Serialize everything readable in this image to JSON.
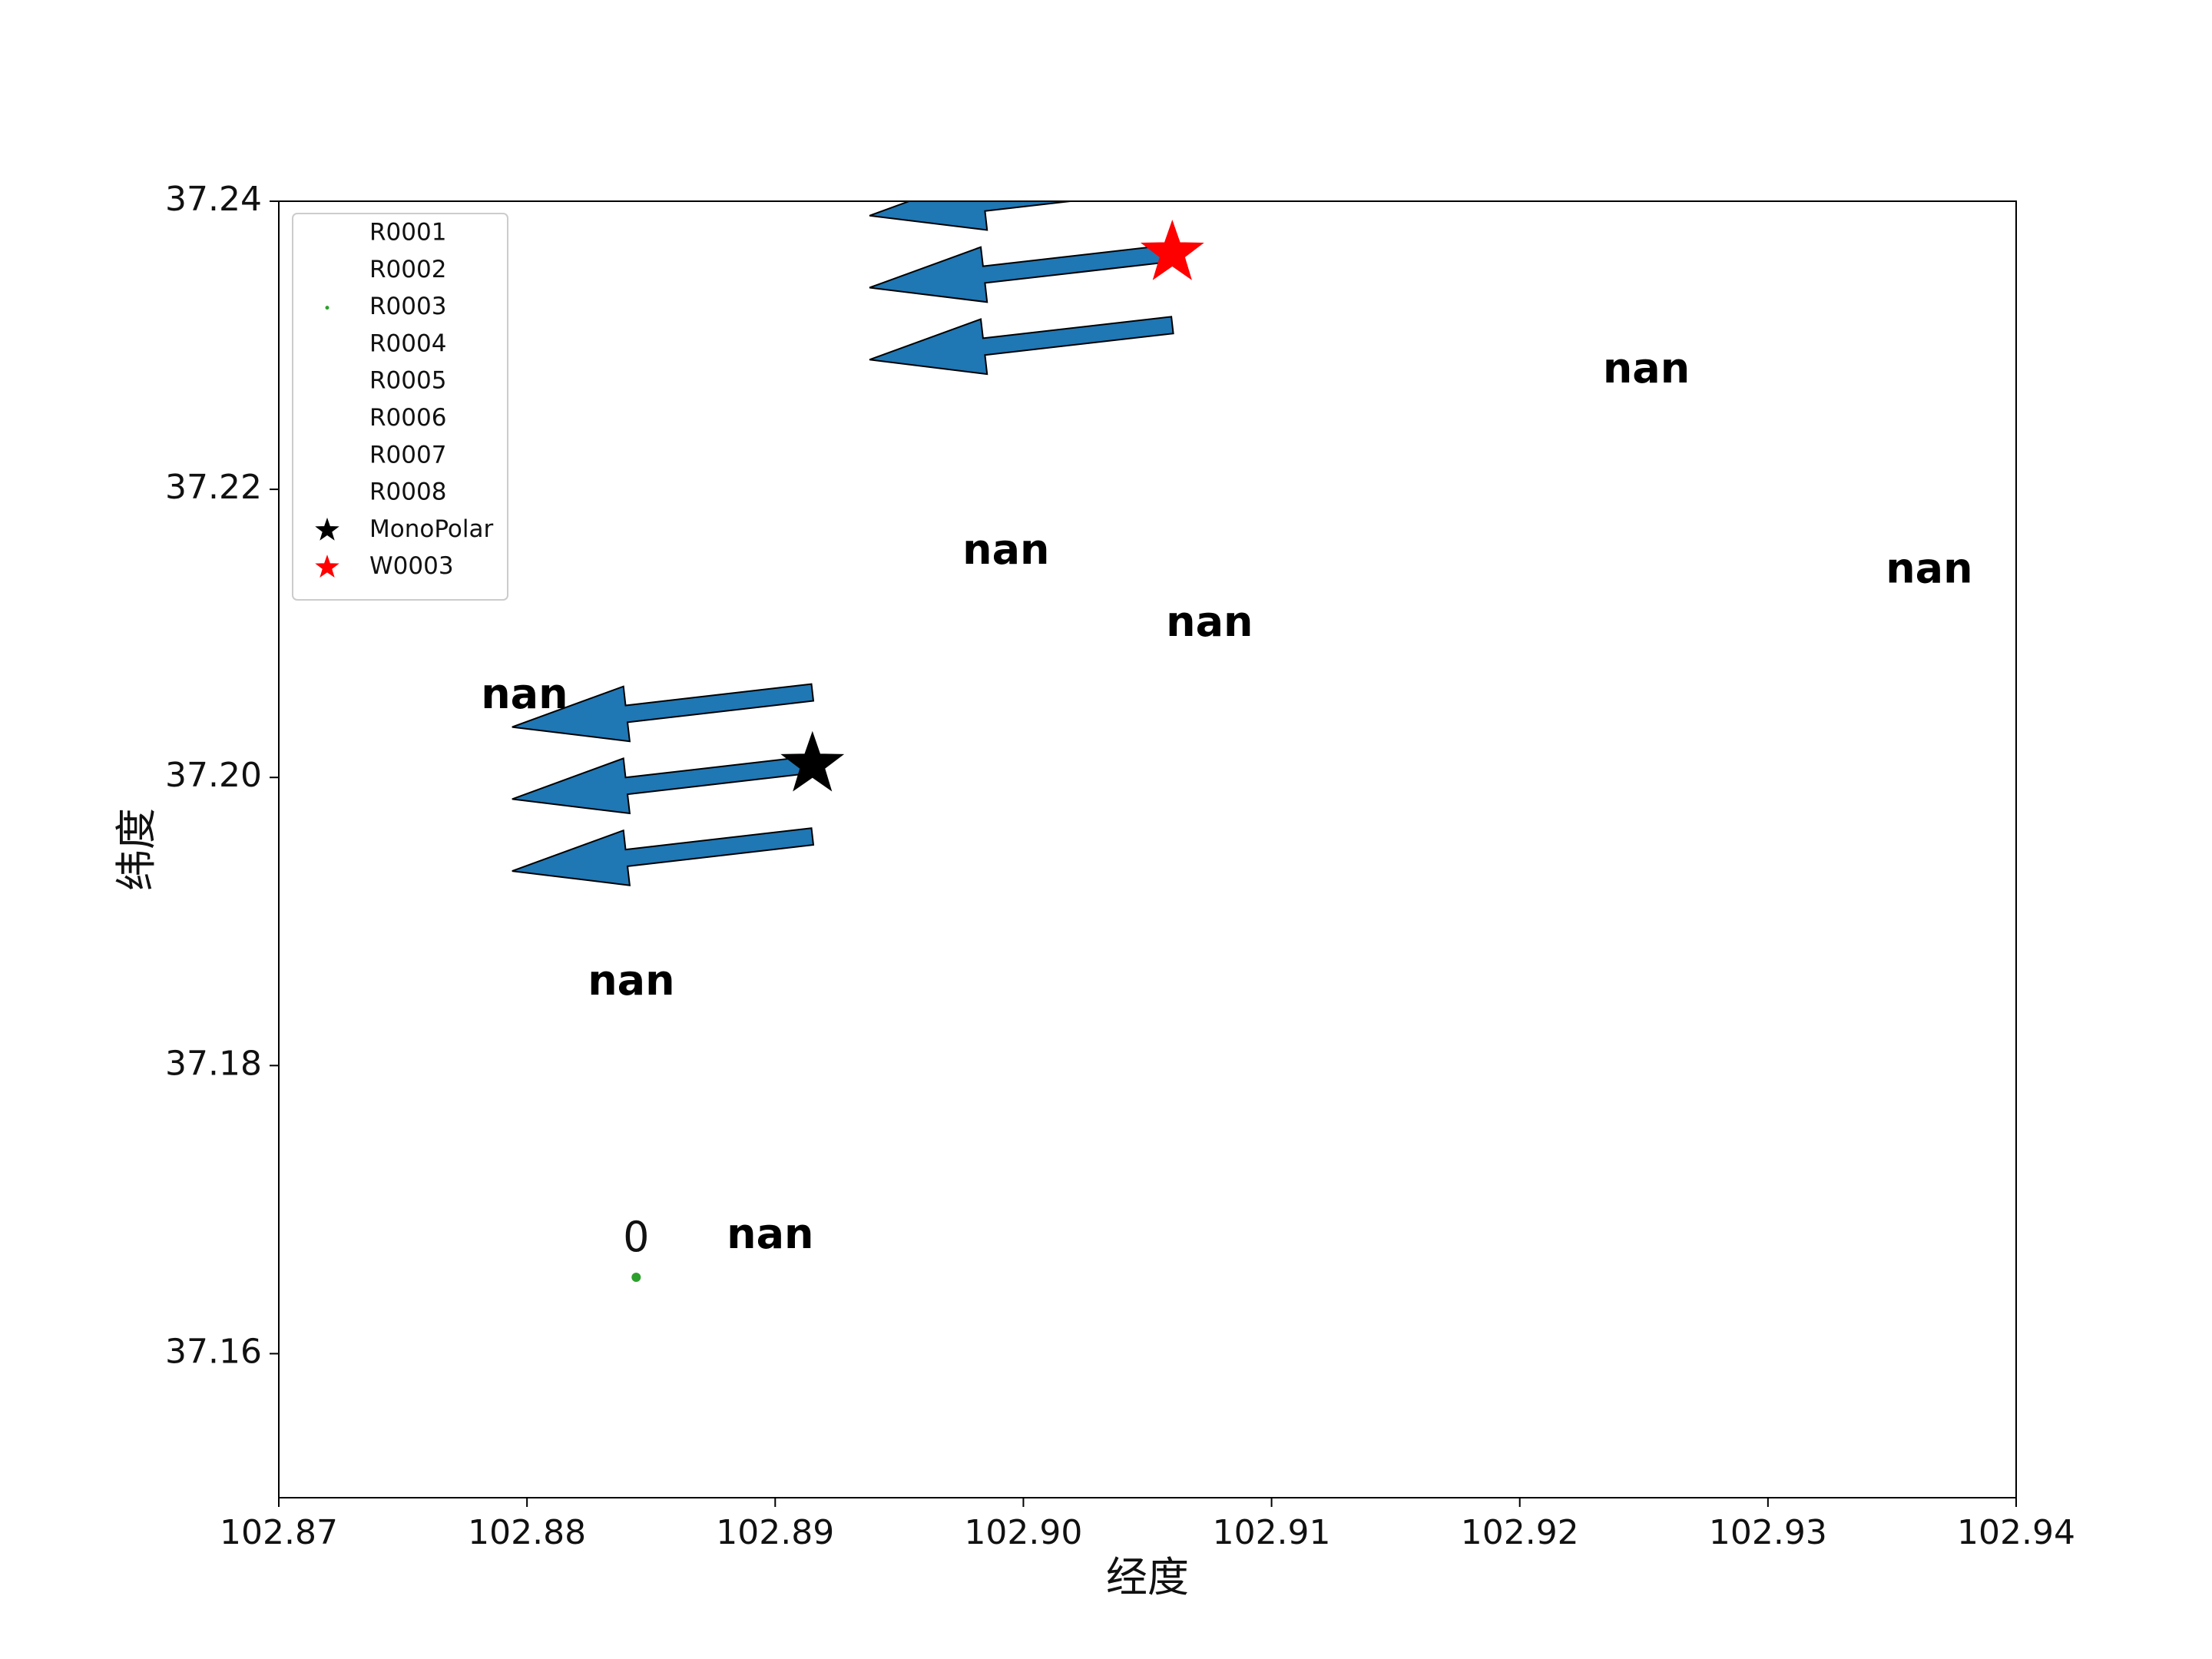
{
  "chart_data": {
    "type": "scatter",
    "xlabel": "经度",
    "ylabel": "纬度",
    "xlim": [
      102.87,
      102.94
    ],
    "ylim": [
      37.15,
      37.24
    ],
    "xticks": [
      102.87,
      102.88,
      102.89,
      102.9,
      102.91,
      102.92,
      102.93,
      102.94
    ],
    "xtick_labels": [
      "102.87",
      "102.88",
      "102.89",
      "102.90",
      "102.91",
      "102.92",
      "102.93",
      "102.94"
    ],
    "yticks": [
      37.16,
      37.18,
      37.2,
      37.22,
      37.24
    ],
    "ytick_labels": [
      "37.16",
      "37.18",
      "37.20",
      "37.22",
      "37.24"
    ],
    "grid": false,
    "legend_position": "top-left",
    "legend": [
      {
        "label": "R0001",
        "marker": "none",
        "color": ""
      },
      {
        "label": "R0002",
        "marker": "none",
        "color": ""
      },
      {
        "label": "R0003",
        "marker": "dot",
        "color": "#2ca02c"
      },
      {
        "label": "R0004",
        "marker": "none",
        "color": ""
      },
      {
        "label": "R0005",
        "marker": "none",
        "color": ""
      },
      {
        "label": "R0006",
        "marker": "none",
        "color": ""
      },
      {
        "label": "R0007",
        "marker": "none",
        "color": ""
      },
      {
        "label": "R0008",
        "marker": "none",
        "color": ""
      },
      {
        "label": "MonoPolar",
        "marker": "star",
        "color": "#000000"
      },
      {
        "label": "W0003",
        "marker": "star",
        "color": "#ff0000"
      }
    ],
    "points": [
      {
        "series": "R0003",
        "x": 102.8844,
        "y": 37.1653,
        "color": "#2ca02c",
        "marker": "dot",
        "label": "0"
      },
      {
        "series": "MonoPolar",
        "x": 102.8915,
        "y": 37.2009,
        "color": "#000000",
        "marker": "star",
        "label": ""
      },
      {
        "series": "W0003",
        "x": 102.906,
        "y": 37.2364,
        "color": "#ff0000",
        "marker": "star",
        "label": ""
      }
    ],
    "arrow_color": "#1f77b4",
    "arrows": [
      {
        "x0": 102.8915,
        "y0": 37.2059,
        "x1": 102.8794,
        "y1": 37.2035
      },
      {
        "x0": 102.8915,
        "y0": 37.2009,
        "x1": 102.8794,
        "y1": 37.1985
      },
      {
        "x0": 102.8915,
        "y0": 37.1959,
        "x1": 102.8794,
        "y1": 37.1935
      },
      {
        "x0": 102.906,
        "y0": 37.2414,
        "x1": 102.8938,
        "y1": 37.239
      },
      {
        "x0": 102.906,
        "y0": 37.2364,
        "x1": 102.8938,
        "y1": 37.234
      },
      {
        "x0": 102.906,
        "y0": 37.2314,
        "x1": 102.8938,
        "y1": 37.229
      }
    ],
    "annotations": [
      {
        "text": "nan",
        "x": 102.9251,
        "y": 37.2282
      },
      {
        "text": "nan",
        "x": 102.8993,
        "y": 37.2156
      },
      {
        "text": "nan",
        "x": 102.9365,
        "y": 37.2143
      },
      {
        "text": "nan",
        "x": 102.9075,
        "y": 37.2106
      },
      {
        "text": "nan",
        "x": 102.8799,
        "y": 37.2056
      },
      {
        "text": "nan",
        "x": 102.8842,
        "y": 37.1857
      },
      {
        "text": "nan",
        "x": 102.8898,
        "y": 37.1681
      }
    ]
  }
}
